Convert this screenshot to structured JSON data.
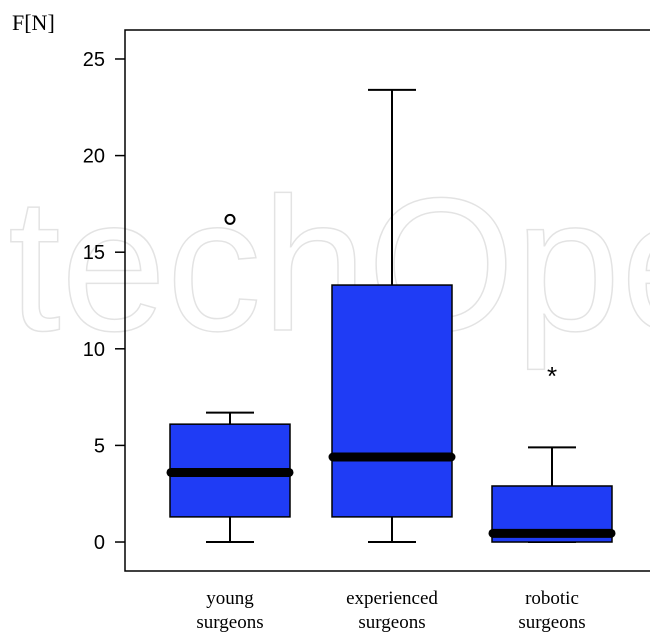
{
  "chart_data": {
    "type": "boxplot",
    "ylabel": "F[N]",
    "xlabel": "",
    "ylim": [
      -1.5,
      26.5
    ],
    "yticks": [
      0,
      5,
      10,
      15,
      20,
      25
    ],
    "grid": false,
    "box_color": "#1f3cf5",
    "median_color": "#000000",
    "watermark": "techOpen",
    "categories": [
      {
        "id": "young",
        "label_line1": "young",
        "label_line2": "surgeons",
        "whisker_low": 0,
        "q1": 1.3,
        "median": 3.6,
        "q3": 6.1,
        "whisker_high": 6.7,
        "outliers": [
          {
            "value": 16.7,
            "marker": "circle"
          }
        ]
      },
      {
        "id": "experienced",
        "label_line1": "experienced",
        "label_line2": "surgeons",
        "whisker_low": 0,
        "q1": 1.3,
        "median": 4.4,
        "q3": 13.3,
        "whisker_high": 23.4,
        "outliers": []
      },
      {
        "id": "robotic",
        "label_line1": "robotic",
        "label_line2": "surgeons",
        "whisker_low": 0,
        "q1": 0,
        "median": 0.45,
        "q3": 2.9,
        "whisker_high": 4.9,
        "outliers": [
          {
            "value": 8.9,
            "marker": "star"
          }
        ]
      }
    ]
  }
}
